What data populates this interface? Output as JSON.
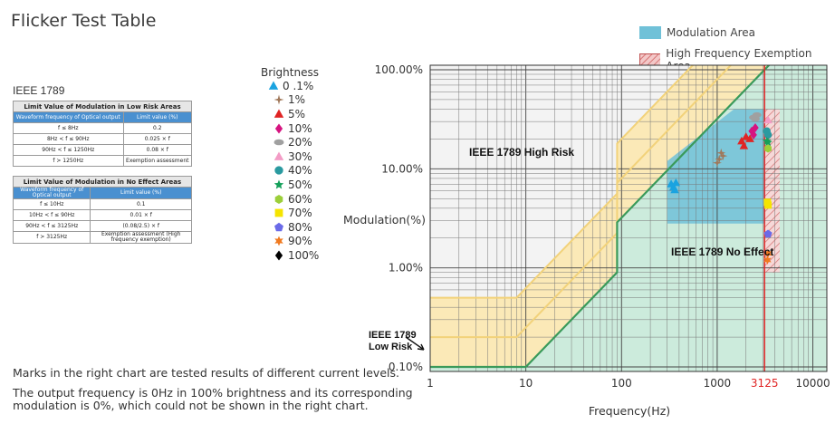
{
  "page": {
    "title": "Flicker Test Table",
    "standard": "IEEE 1789",
    "note1": "Marks in the right chart are tested results of different current levels.",
    "note2_line1": "The output frequency is 0Hz in 100% brightness and its corresponding",
    "note2_line2": "modulation is 0%, which could not be shown in the right chart."
  },
  "table_low": {
    "caption": "Limit Value of Modulation in Low Risk Areas",
    "headers": [
      "Waveform frequency of Optical output",
      "Limit value (%)"
    ],
    "rows": [
      [
        "f ≤ 8Hz",
        "0.2"
      ],
      [
        "8Hz < f ≤ 90Hz",
        "0.025 × f"
      ],
      [
        "90Hz < f ≤ 1250Hz",
        "0.08 × f"
      ],
      [
        "f > 1250Hz",
        "Exemption assessment"
      ]
    ]
  },
  "table_effect": {
    "caption": "Limit Value of Modulation in No Effect Areas",
    "headers": [
      "Waveform frequency of Optical output",
      "Limit value (%)"
    ],
    "rows": [
      [
        "f ≤ 10Hz",
        "0.1"
      ],
      [
        "10Hz < f ≤ 90Hz",
        "0.01 × f"
      ],
      [
        "90Hz < f ≤ 3125Hz",
        "(0.08/2.5) × f"
      ],
      [
        "f > 3125Hz",
        "Exemption assessment (High frequency exemption)"
      ]
    ]
  },
  "brightness_legend": {
    "title": "Brightness",
    "items": [
      {
        "label": "0 .1%",
        "color": "#1aa3e0",
        "marker": "triangle"
      },
      {
        "label": "1%",
        "color": "#a0785a",
        "marker": "star4"
      },
      {
        "label": "5%",
        "color": "#e02424",
        "marker": "triangle"
      },
      {
        "label": "10%",
        "color": "#d61480",
        "marker": "diamond"
      },
      {
        "label": "20%",
        "color": "#a0a0a0",
        "marker": "ellipse"
      },
      {
        "label": "30%",
        "color": "#f39cc6",
        "marker": "triangle"
      },
      {
        "label": "40%",
        "color": "#2a9aa0",
        "marker": "circle"
      },
      {
        "label": "50%",
        "color": "#14a05a",
        "marker": "star5"
      },
      {
        "label": "60%",
        "color": "#9ccf3a",
        "marker": "hexagon"
      },
      {
        "label": "70%",
        "color": "#f5e400",
        "marker": "square"
      },
      {
        "label": "80%",
        "color": "#6a6ae8",
        "marker": "pentagon"
      },
      {
        "label": "90%",
        "color": "#f07a20",
        "marker": "star6"
      },
      {
        "label": "100%",
        "color": "#000000",
        "marker": "diamond"
      }
    ]
  },
  "chart_legend": {
    "modulation_area": "Modulation Area",
    "exemption_area": "High Frequency Exemption Area",
    "modulation_color": "#70c1d8",
    "exemption_color": "#e8a0a0"
  },
  "chart_data": {
    "type": "scatter",
    "xlabel": "Frequency(Hz)",
    "ylabel": "Modulation(%)",
    "xscale": "log",
    "yscale": "log",
    "xlim": [
      1,
      14000
    ],
    "ylim": [
      0.08,
      150
    ],
    "x_ticks": [
      {
        "value": 1,
        "label": "1"
      },
      {
        "value": 10,
        "label": "10"
      },
      {
        "value": 100,
        "label": "100"
      },
      {
        "value": 1000,
        "label": "1000"
      },
      {
        "value": 3125,
        "label": "3125",
        "color": "#e02424"
      },
      {
        "value": 10000,
        "label": "10000"
      }
    ],
    "y_ticks": [
      {
        "value": 0.1,
        "label": "0.10%"
      },
      {
        "value": 1,
        "label": "1.00%"
      },
      {
        "value": 10,
        "label": "10.00%"
      },
      {
        "value": 100,
        "label": "100.00%"
      }
    ],
    "annotations": {
      "high_risk": "IEEE 1789 High Risk",
      "no_effect": "IEEE 1789 No Effect",
      "low_risk_line1": "IEEE 1789",
      "low_risk_line2": "Low Risk"
    },
    "low_risk_limit": {
      "flat": 0.2,
      "f1": 8,
      "slope1": 0.025,
      "f2": 90,
      "slope2": 0.08
    },
    "no_effect_limit": {
      "flat": 0.1,
      "f1": 10,
      "slope1": 0.01,
      "f2": 90,
      "slope2": 0.032
    },
    "exemption_frequency": 3125,
    "modulation_area": [
      [
        300,
        2.8
      ],
      [
        3125,
        2.8
      ],
      [
        3125,
        40
      ],
      [
        1500,
        40
      ],
      [
        300,
        12
      ]
    ],
    "grid": true,
    "series": [
      {
        "name": "0 .1%",
        "points": [
          [
            350,
            6.5
          ],
          [
            370,
            7.2
          ],
          [
            330,
            7.0
          ],
          [
            360,
            6.1
          ]
        ]
      },
      {
        "name": "1%",
        "points": [
          [
            1050,
            12.5
          ],
          [
            1150,
            13.5
          ],
          [
            1000,
            11.5
          ],
          [
            1100,
            14.5
          ]
        ]
      },
      {
        "name": "5%",
        "points": [
          [
            1800,
            19
          ],
          [
            2000,
            21
          ],
          [
            1900,
            17
          ],
          [
            2200,
            20
          ]
        ]
      },
      {
        "name": "10%",
        "points": [
          [
            2300,
            24
          ],
          [
            2500,
            26
          ],
          [
            2400,
            22
          ]
        ]
      },
      {
        "name": "20%",
        "points": [
          [
            2400,
            33
          ],
          [
            2600,
            35
          ],
          [
            2500,
            32
          ]
        ]
      },
      {
        "name": "30%",
        "points": [
          [
            3400,
            31
          ]
        ]
      },
      {
        "name": "40%",
        "points": [
          [
            3300,
            24
          ],
          [
            3400,
            22
          ]
        ]
      },
      {
        "name": "50%",
        "points": [
          [
            3400,
            18.5
          ],
          [
            3300,
            19
          ]
        ]
      },
      {
        "name": "60%",
        "points": [
          [
            3400,
            16
          ]
        ]
      },
      {
        "name": "70%",
        "points": [
          [
            3400,
            4.3
          ],
          [
            3350,
            4.6
          ]
        ]
      },
      {
        "name": "80%",
        "points": [
          [
            3400,
            2.2
          ]
        ]
      },
      {
        "name": "90%",
        "points": [
          [
            3400,
            1.4
          ],
          [
            3350,
            1.2
          ]
        ]
      }
    ]
  }
}
